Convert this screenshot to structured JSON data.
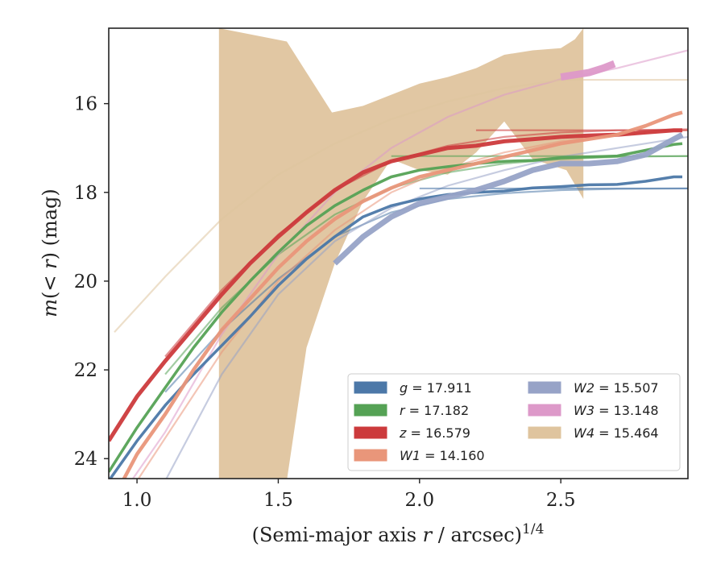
{
  "chart_data": {
    "type": "line",
    "xlabel": "(Semi-major axis r / arcsec)^1/4",
    "ylabel": "m(< r) (mag)",
    "xlim": [
      0.9,
      2.95
    ],
    "ylim": [
      24.45,
      14.3
    ],
    "y_inverted": true,
    "x_ticks": [
      1.0,
      1.5,
      2.0,
      2.5
    ],
    "x_tick_labels": [
      "1.0",
      "1.5",
      "2.0",
      "2.5"
    ],
    "y_ticks": [
      16,
      18,
      20,
      22,
      24
    ],
    "y_tick_labels": [
      "16",
      "18",
      "20",
      "22",
      "24"
    ],
    "grid": false,
    "legend_placement": "lower-right",
    "legend": [
      {
        "band": "g",
        "text": "17.911",
        "color": "#4c78a8"
      },
      {
        "band": "r",
        "text": "17.182",
        "color": "#55a255"
      },
      {
        "band": "z",
        "text": "16.579",
        "color": "#cc3a3c"
      },
      {
        "band": "W1",
        "text": "14.160",
        "color": "#e9967a"
      },
      {
        "band": "W2",
        "text": "15.507",
        "color": "#97a3c7"
      },
      {
        "band": "W3",
        "text": "13.148",
        "color": "#dd99c9"
      },
      {
        "band": "W4",
        "text": "15.464",
        "color": "#dfc49e"
      }
    ],
    "series": [
      {
        "name": "g",
        "color": "#4c78a8",
        "asymptote": 17.911,
        "data_x": [
          0.9,
          1.0,
          1.1,
          1.2,
          1.3,
          1.4,
          1.5,
          1.6,
          1.7,
          1.8,
          1.9,
          2.0,
          2.1,
          2.2,
          2.3,
          2.4,
          2.5,
          2.6,
          2.7,
          2.8,
          2.9,
          2.93
        ],
        "data_y": [
          24.5,
          23.6,
          22.8,
          22.1,
          21.45,
          20.8,
          20.1,
          19.5,
          19.0,
          18.55,
          18.3,
          18.15,
          18.05,
          18.0,
          17.97,
          17.9,
          17.87,
          17.83,
          17.82,
          17.75,
          17.65,
          17.65
        ],
        "model_x": [
          1.1,
          1.3,
          1.5,
          1.7,
          1.9,
          2.1,
          2.3,
          2.5,
          2.7,
          2.95
        ],
        "model_y": [
          22.5,
          21.1,
          19.95,
          19.0,
          18.45,
          18.15,
          18.02,
          17.95,
          17.92,
          17.911
        ]
      },
      {
        "name": "r",
        "color": "#55a255",
        "asymptote": 17.182,
        "data_x": [
          0.9,
          1.0,
          1.1,
          1.2,
          1.3,
          1.4,
          1.5,
          1.6,
          1.7,
          1.8,
          1.9,
          2.0,
          2.1,
          2.2,
          2.3,
          2.4,
          2.5,
          2.6,
          2.7,
          2.8,
          2.9,
          2.93
        ],
        "data_y": [
          24.3,
          23.3,
          22.4,
          21.5,
          20.7,
          20.0,
          19.35,
          18.75,
          18.3,
          17.95,
          17.65,
          17.5,
          17.42,
          17.35,
          17.3,
          17.28,
          17.22,
          17.2,
          17.18,
          17.05,
          16.92,
          16.9
        ],
        "model_x": [
          1.1,
          1.3,
          1.5,
          1.7,
          1.9,
          2.1,
          2.3,
          2.5,
          2.7,
          2.95
        ],
        "model_y": [
          22.1,
          20.6,
          19.4,
          18.5,
          17.9,
          17.55,
          17.35,
          17.25,
          17.2,
          17.182
        ]
      },
      {
        "name": "z",
        "color": "#cc3a3c",
        "asymptote": 16.579,
        "data_x": [
          0.9,
          1.0,
          1.1,
          1.2,
          1.3,
          1.4,
          1.5,
          1.6,
          1.7,
          1.8,
          1.9,
          2.0,
          2.1,
          2.2,
          2.3,
          2.4,
          2.5,
          2.6,
          2.7,
          2.8,
          2.9,
          2.93
        ],
        "data_y": [
          23.6,
          22.6,
          21.8,
          21.05,
          20.3,
          19.6,
          19.0,
          18.45,
          17.95,
          17.55,
          17.3,
          17.15,
          17.0,
          16.95,
          16.85,
          16.8,
          16.75,
          16.72,
          16.7,
          16.65,
          16.6,
          16.6
        ],
        "model_x": [
          1.1,
          1.3,
          1.5,
          1.7,
          1.9,
          2.1,
          2.3,
          2.5,
          2.7,
          2.95
        ],
        "model_y": [
          21.7,
          20.2,
          18.95,
          17.95,
          17.3,
          16.95,
          16.75,
          16.65,
          16.6,
          16.579
        ]
      },
      {
        "name": "W1",
        "color": "#e9967a",
        "asymptote": 14.16,
        "data_x": [
          0.95,
          1.0,
          1.1,
          1.2,
          1.3,
          1.4,
          1.5,
          1.6,
          1.7,
          1.8,
          1.9,
          2.0,
          2.1,
          2.2,
          2.3,
          2.4,
          2.5,
          2.6,
          2.7,
          2.8,
          2.9,
          2.93
        ],
        "data_y": [
          24.5,
          23.9,
          23.0,
          22.0,
          21.1,
          20.4,
          19.7,
          19.1,
          18.6,
          18.2,
          17.9,
          17.65,
          17.5,
          17.35,
          17.2,
          17.05,
          16.9,
          16.8,
          16.7,
          16.5,
          16.25,
          16.2
        ],
        "model_x": [
          1.0,
          1.3,
          1.5,
          1.7,
          1.9,
          2.1,
          2.3,
          2.5,
          2.7,
          2.95
        ],
        "model_y": [
          24.5,
          21.6,
          20.0,
          18.85,
          18.0,
          17.45,
          17.1,
          16.85,
          16.7,
          16.6
        ]
      },
      {
        "name": "W2",
        "color": "#97a3c7",
        "asymptote": 15.507,
        "data_x": [
          1.7,
          1.8,
          1.9,
          2.0,
          2.1,
          2.2,
          2.3,
          2.4,
          2.5,
          2.6,
          2.7,
          2.8,
          2.9,
          2.93
        ],
        "data_y": [
          19.6,
          19.0,
          18.55,
          18.25,
          18.1,
          17.95,
          17.75,
          17.5,
          17.35,
          17.35,
          17.3,
          17.15,
          16.8,
          16.7
        ],
        "model_x": [
          1.1,
          1.3,
          1.5,
          1.7,
          1.9,
          2.1,
          2.3,
          2.5,
          2.7,
          2.95
        ],
        "model_y": [
          24.5,
          22.1,
          20.3,
          19.1,
          18.35,
          17.85,
          17.5,
          17.2,
          17.0,
          16.75
        ]
      },
      {
        "name": "W3",
        "color": "#dd99c9",
        "asymptote": 13.148,
        "data_x": [
          2.5,
          2.55,
          2.6,
          2.65,
          2.69
        ],
        "data_y": [
          15.4,
          15.35,
          15.3,
          15.2,
          15.1
        ],
        "model_x": [
          0.98,
          1.1,
          1.3,
          1.5,
          1.7,
          1.9,
          2.1,
          2.3,
          2.5,
          2.7,
          2.95
        ],
        "model_y": [
          24.5,
          23.4,
          21.2,
          19.4,
          18.0,
          17.0,
          16.3,
          15.8,
          15.45,
          15.2,
          14.8
        ]
      },
      {
        "name": "W4",
        "color": "#dfc49e",
        "asymptote": 15.464,
        "band_x": [
          1.29,
          1.29,
          1.53,
          1.69,
          1.8,
          1.9,
          2.0,
          2.1,
          2.2,
          2.3,
          2.4,
          2.5,
          2.55,
          2.58,
          2.58,
          2.52,
          2.4,
          2.3,
          2.2,
          2.1,
          2.0,
          1.9,
          1.8,
          1.7,
          1.6,
          1.53
        ],
        "band_y_upper": [
          24.5,
          14.3,
          14.6,
          16.2,
          16.05,
          15.8,
          15.55,
          15.4,
          15.2,
          14.9,
          14.8,
          14.75,
          14.55,
          14.3,
          18.15,
          17.5,
          17.25,
          16.4,
          17.1,
          17.6,
          17.5,
          17.25,
          18.2,
          19.6,
          21.5,
          24.5
        ],
        "model_x": [
          0.92,
          1.1,
          1.3,
          1.5,
          1.7,
          1.9,
          2.1,
          2.3,
          2.5,
          2.58
        ],
        "model_y": [
          21.15,
          19.9,
          18.6,
          17.6,
          16.9,
          16.35,
          15.95,
          15.65,
          15.47,
          15.464
        ]
      }
    ]
  }
}
